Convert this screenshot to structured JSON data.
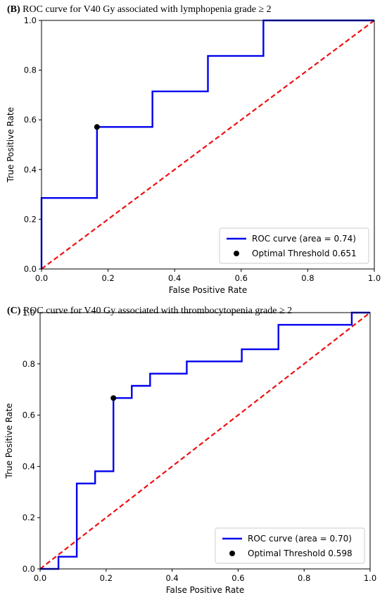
{
  "colors": {
    "roc": "#0000ee",
    "chance": "#ee1111",
    "threshold": "#000000",
    "axis": "#000000"
  },
  "chart_data": [
    {
      "id": "B",
      "type": "line",
      "panel_tag": "(B)",
      "title": "ROC curve for V40 Gy associated with lymphopenia grade ≥ 2",
      "xlabel": "False Positive Rate",
      "ylabel": "True Positive Rate",
      "xlim": [
        0,
        1
      ],
      "ylim": [
        0,
        1
      ],
      "ticks": [
        "0.0",
        "0.2",
        "0.4",
        "0.6",
        "0.8",
        "1.0"
      ],
      "legend_position": "lower-right",
      "grid": false,
      "series": [
        {
          "name": "ROC curve (area = 0.74)",
          "x": [
            0.0,
            0.0,
            0.1667,
            0.1667,
            0.3333,
            0.3333,
            0.5,
            0.5,
            0.6667,
            0.6667,
            1.0
          ],
          "y": [
            0.0,
            0.2857,
            0.2857,
            0.5714,
            0.5714,
            0.7143,
            0.7143,
            0.8571,
            0.8571,
            1.0,
            1.0
          ]
        }
      ],
      "optimal_point": {
        "name": "Optimal Threshold 0.651",
        "x": 0.1667,
        "y": 0.5714
      }
    },
    {
      "id": "C",
      "type": "line",
      "panel_tag": "(C)",
      "title": "ROC curve for V40 Gy associated with thrombocytopenia grade ≥ 2",
      "xlabel": "False Positive Rate",
      "ylabel": "True Positive Rate",
      "xlim": [
        0,
        1
      ],
      "ylim": [
        0,
        1
      ],
      "ticks": [
        "0.0",
        "0.2",
        "0.4",
        "0.6",
        "0.8",
        "1.0"
      ],
      "legend_position": "lower-right",
      "grid": false,
      "series": [
        {
          "name": "ROC curve (area = 0.70)",
          "x": [
            0.0,
            0.0556,
            0.0556,
            0.1111,
            0.1111,
            0.1667,
            0.1667,
            0.2222,
            0.2222,
            0.2778,
            0.2778,
            0.3333,
            0.3333,
            0.4444,
            0.4444,
            0.6111,
            0.6111,
            0.7222,
            0.7222,
            0.9444,
            0.9444,
            1.0
          ],
          "y": [
            0.0,
            0.0,
            0.0476,
            0.0476,
            0.3333,
            0.3333,
            0.381,
            0.381,
            0.6667,
            0.6667,
            0.7143,
            0.7143,
            0.7619,
            0.7619,
            0.8095,
            0.8095,
            0.8571,
            0.8571,
            0.9524,
            0.9524,
            1.0,
            1.0
          ]
        }
      ],
      "optimal_point": {
        "name": "Optimal Threshold 0.598",
        "x": 0.2222,
        "y": 0.6667
      }
    }
  ]
}
